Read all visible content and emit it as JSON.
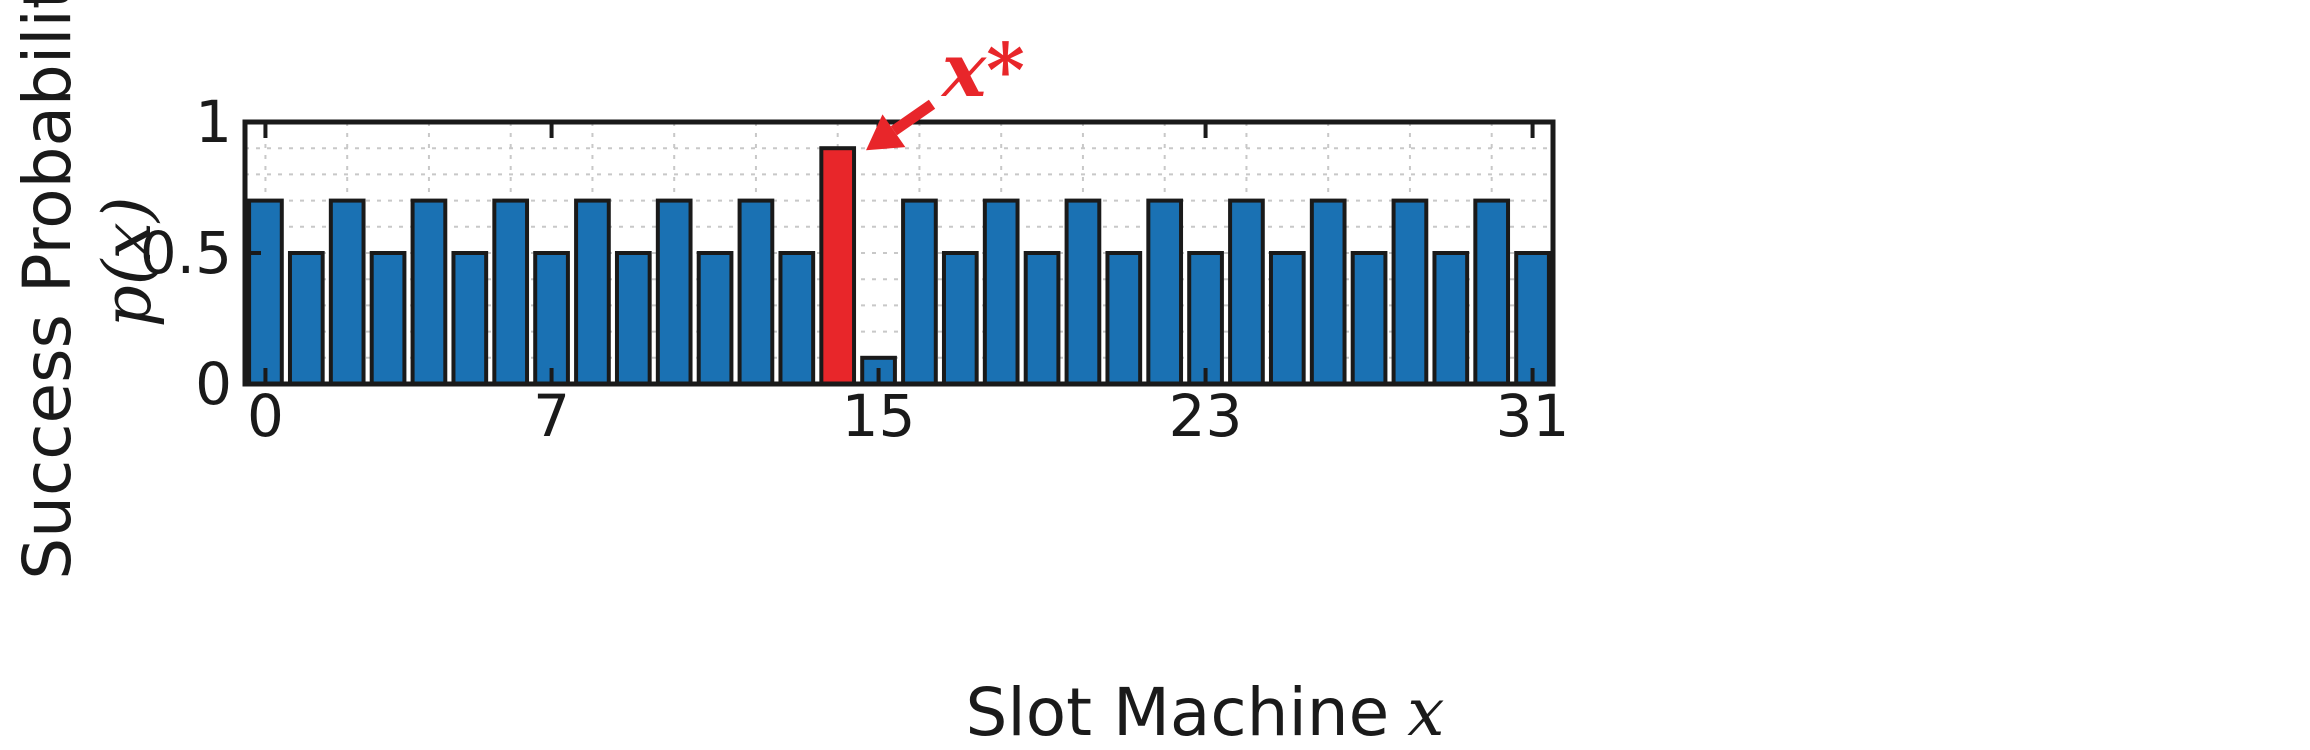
{
  "chart_data": {
    "type": "bar",
    "x": [
      0,
      1,
      2,
      3,
      4,
      5,
      6,
      7,
      8,
      9,
      10,
      11,
      12,
      13,
      14,
      15,
      16,
      17,
      18,
      19,
      20,
      21,
      22,
      23,
      24,
      25,
      26,
      27,
      28,
      29,
      30,
      31
    ],
    "values": [
      0.7,
      0.5,
      0.7,
      0.5,
      0.7,
      0.5,
      0.7,
      0.5,
      0.7,
      0.5,
      0.7,
      0.5,
      0.7,
      0.5,
      0.9,
      0.1,
      0.7,
      0.5,
      0.7,
      0.5,
      0.7,
      0.5,
      0.7,
      0.5,
      0.7,
      0.5,
      0.7,
      0.5,
      0.7,
      0.5,
      0.7,
      0.5
    ],
    "highlight_index": 14,
    "xlim": [
      -0.5,
      31.5
    ],
    "ylim": [
      0,
      1
    ],
    "xticks": [
      0,
      7,
      15,
      23,
      31
    ],
    "xtick_labels": [
      "0",
      "7",
      "15",
      "23",
      "31"
    ],
    "yticks": [
      0,
      0.5,
      1
    ],
    "ytick_labels": [
      "0",
      "0.5",
      "1"
    ],
    "xlabel": "Slot Machine",
    "xlabel_var": "x",
    "ylabel_line1": "Success Probability",
    "ylabel_line2": "p(x)",
    "annotation": {
      "text": "x*",
      "target_index": 14
    },
    "grid": true,
    "colors": {
      "bar": "#1a71b3",
      "highlight": "#e8262a",
      "edge": "#1a1a1a",
      "grid": "#c8c8c8"
    }
  }
}
